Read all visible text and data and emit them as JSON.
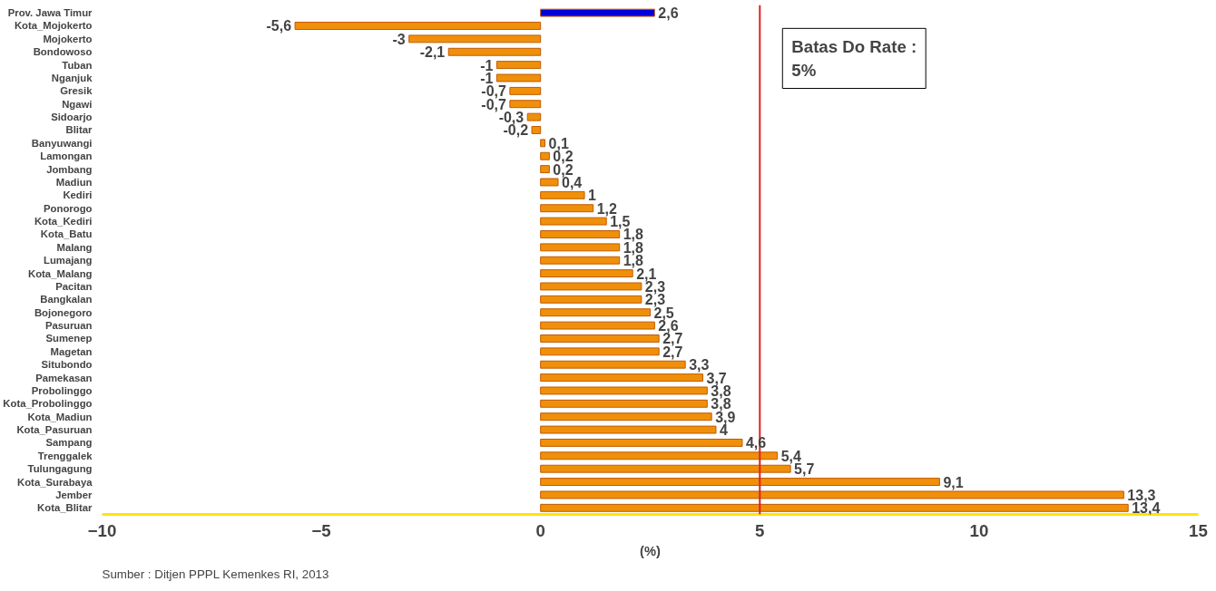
{
  "chart_data": {
    "type": "bar",
    "orientation": "horizontal",
    "xlabel": "(%)",
    "categories": [
      "Prov. Jawa Timur",
      "Kota_Mojokerto",
      "Mojokerto",
      "Bondowoso",
      "Tuban",
      "Nganjuk",
      "Gresik",
      "Ngawi",
      "Sidoarjo",
      "Blitar",
      "Banyuwangi",
      "Lamongan",
      "Jombang",
      "Madiun",
      "Kediri",
      "Ponorogo",
      "Kota_Kediri",
      "Kota_Batu",
      "Malang",
      "Lumajang",
      "Kota_Malang",
      "Pacitan",
      "Bangkalan",
      "Bojonegoro",
      "Pasuruan",
      "Sumenep",
      "Magetan",
      "Situbondo",
      "Pamekasan",
      "Probolinggo",
      "Kota_Probolinggo",
      "Kota_Madiun",
      "Kota_Pasuruan",
      "Sampang",
      "Trenggalek",
      "Tulungagung",
      "Kota_Surabaya",
      "Jember",
      "Kota_Blitar"
    ],
    "values": [
      2.6,
      -5.6,
      -3,
      -2.1,
      -1,
      -1,
      -0.7,
      -0.7,
      -0.3,
      -0.2,
      0.1,
      0.2,
      0.2,
      0.4,
      1,
      1.2,
      1.5,
      1.8,
      1.8,
      1.8,
      2.1,
      2.3,
      2.3,
      2.5,
      2.6,
      2.7,
      2.7,
      3.3,
      3.7,
      3.8,
      3.8,
      3.9,
      4,
      4.6,
      5.4,
      5.7,
      9.1,
      13.3,
      13.4
    ],
    "colors": [
      "#0000dd",
      "#f0900a",
      "#f0900a",
      "#f0900a",
      "#f0900a",
      "#f0900a",
      "#f0900a",
      "#f0900a",
      "#f0900a",
      "#f0900a",
      "#f0900a",
      "#f0900a",
      "#f0900a",
      "#f0900a",
      "#f0900a",
      "#f0900a",
      "#f0900a",
      "#f0900a",
      "#f0900a",
      "#f0900a",
      "#f0900a",
      "#f0900a",
      "#f0900a",
      "#f0900a",
      "#f0900a",
      "#f0900a",
      "#f0900a",
      "#f0900a",
      "#f0900a",
      "#f0900a",
      "#f0900a",
      "#f0900a",
      "#f0900a",
      "#f0900a",
      "#f0900a",
      "#f0900a",
      "#f0900a",
      "#f0900a",
      "#f0900a"
    ],
    "xlim": [
      -10,
      15
    ],
    "xticks": [
      -10,
      -5,
      0,
      5,
      10,
      15
    ],
    "value_labels": [
      "2,6",
      "-5,6",
      "-3",
      "-2,1",
      "-1",
      "-1",
      "-0,7",
      "-0,7",
      "-0,3",
      "-0,2",
      "0,1",
      "0,2",
      "0,2",
      "0,4",
      "1",
      "1,2",
      "1,5",
      "1,8",
      "1,8",
      "1,8",
      "2,1",
      "2,3",
      "2,3",
      "2,5",
      "2,6",
      "2,7",
      "2,7",
      "3,3",
      "3,7",
      "3,8",
      "3,8",
      "3,9",
      "4",
      "4,6",
      "5,4",
      "5,7",
      "9,1",
      "13,3",
      "13,4"
    ],
    "grid": false,
    "ref_lines": [
      {
        "axis": "x",
        "value": 5,
        "label": "Batas Do Rate :\n5%",
        "color": "#e02020"
      }
    ],
    "annotations": [
      "Sumber : Ditjen PPPL Kemenkes RI, 2013"
    ]
  }
}
